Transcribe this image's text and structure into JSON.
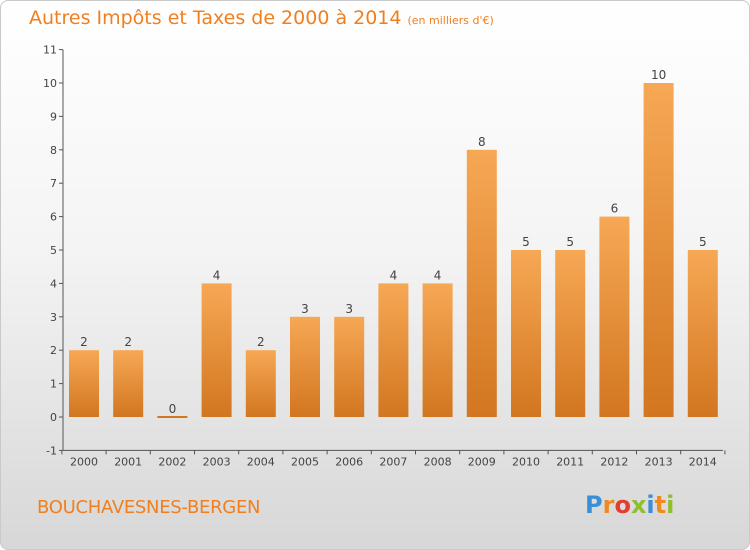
{
  "title": {
    "main": "Autres Impôts et Taxes de 2000 à 2014",
    "unit": "(en milliers d'€)"
  },
  "commune": "BOUCHAVESNES-BERGEN",
  "logo": {
    "letters": [
      "P",
      "r",
      "o",
      "x",
      "i",
      "t",
      "i"
    ],
    "colors": [
      "#3b8fd6",
      "#f08a1e",
      "#e23d2e",
      "#8fbf2a",
      "#3b8fd6",
      "#f08a1e",
      "#8fbf2a"
    ]
  },
  "colors": {
    "accent": "#f07f1f",
    "bar_light": "#f7a855",
    "bar_dark": "#d27620",
    "axis": "#555555"
  },
  "chart_data": {
    "type": "bar",
    "title": "Autres Impôts et Taxes de 2000 à 2014",
    "subtitle": "(en milliers d'€)",
    "xlabel": "",
    "ylabel": "",
    "categories": [
      "2000",
      "2001",
      "2002",
      "2003",
      "2004",
      "2005",
      "2006",
      "2007",
      "2008",
      "2009",
      "2010",
      "2011",
      "2012",
      "2013",
      "2014"
    ],
    "values": [
      2,
      2,
      0,
      4,
      2,
      3,
      3,
      4,
      4,
      8,
      5,
      5,
      6,
      10,
      5
    ],
    "data_labels": [
      "2",
      "2",
      "0",
      "4",
      "2",
      "3",
      "3",
      "4",
      "4",
      "8",
      "5",
      "5",
      "6",
      "10",
      "5"
    ],
    "ylim": [
      -1,
      11
    ],
    "yticks": [
      -1,
      0,
      1,
      2,
      3,
      4,
      5,
      6,
      7,
      8,
      9,
      10,
      11
    ],
    "ytick_labels": [
      "-1",
      "0",
      "1",
      "2",
      "3",
      "4",
      "5",
      "6",
      "7",
      "8",
      "9",
      "10",
      "11"
    ],
    "grid": false,
    "legend": "none"
  }
}
